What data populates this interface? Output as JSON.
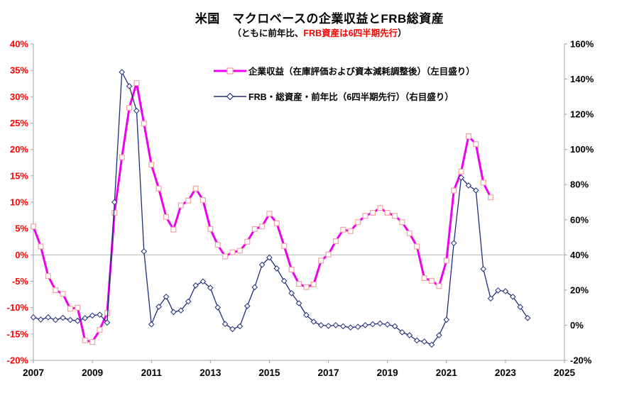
{
  "title": "米国　マクロベースの企業収益とFRB総資産",
  "subtitle": {
    "prefix": "（ともに前年比、",
    "highlight": "FRB資産は6四半期先行",
    "suffix": "）",
    "highlight_color": "#ff0000"
  },
  "legend": [
    {
      "label": "企業収益（在庫評価および資本減耗調整後）（左目盛り）"
    },
    {
      "label": "FRB・総資産・前年比（6四半期先行）（右目盛り）"
    }
  ],
  "colors": {
    "profit_line": "#ee00ee",
    "profit_marker_stroke": "#f2a3a3",
    "frb_line": "#1f2d7d",
    "left_axis_text": "#ff0000",
    "right_axis_text": "#000000",
    "axis_line": "#a6a6a6",
    "zero_gridline": "#c0c0c0",
    "background": "#ffffff"
  },
  "chart_data": {
    "type": "line",
    "title": "米国　マクロベースの企業収益とFRB総資産",
    "subtitle": "（ともに前年比、FRB資産は6四半期先行）",
    "x_axis": {
      "start": 2007,
      "end": 2025,
      "tick_step_years": 2,
      "labels": [
        "2007",
        "2009",
        "2011",
        "2013",
        "2015",
        "2017",
        "2019",
        "2021",
        "2023",
        "2025"
      ]
    },
    "left_axis": {
      "min": -20,
      "max": 40,
      "step": 5,
      "unit": "%",
      "labels": [
        "40%",
        "35%",
        "30%",
        "25%",
        "20%",
        "15%",
        "10%",
        "5%",
        "0%",
        "-5%",
        "-10%",
        "-15%",
        "-20%"
      ]
    },
    "right_axis": {
      "min": -20,
      "max": 160,
      "step": 20,
      "unit": "%",
      "labels": [
        "160%",
        "140%",
        "120%",
        "100%",
        "80%",
        "60%",
        "40%",
        "20%",
        "0%",
        "-20%"
      ]
    },
    "gridline_at_left_value": 0,
    "points_per_year": 4,
    "series": [
      {
        "name": "企業収益（在庫評価および資本減耗調整後）（左目盛り）",
        "axis": "left",
        "color": "#ee00ee",
        "marker": "square",
        "marker_fill": "#ffffff",
        "marker_stroke": "#f2a3a3",
        "line_width": 3,
        "start": "2007Q1",
        "values": [
          5.4,
          1.6,
          -4.0,
          -6.7,
          -7.4,
          -10.2,
          -10.0,
          -16.2,
          -16.5,
          -14.2,
          -11.0,
          8.0,
          18.5,
          27.9,
          32.6,
          24.9,
          17.1,
          12.6,
          7.2,
          4.8,
          9.4,
          10.3,
          12.6,
          10.4,
          4.9,
          1.9,
          -0.3,
          0.5,
          0.8,
          2.5,
          4.9,
          5.4,
          7.8,
          6.0,
          1.7,
          -2.8,
          -5.5,
          -6.1,
          -5.6,
          -1.1,
          0.1,
          2.6,
          4.8,
          4.5,
          6.2,
          7.4,
          8.0,
          8.9,
          8.0,
          7.4,
          6.2,
          4.1,
          1.6,
          -4.4,
          -4.9,
          -5.9,
          -1.1,
          12.2,
          15.8,
          22.5,
          21.0,
          13.7,
          10.9
        ]
      },
      {
        "name": "FRB・総資産・前年比（6四半期先行）（右目盛り）",
        "axis": "right",
        "color": "#1f2d7d",
        "marker": "diamond",
        "marker_fill": "#ffffff",
        "marker_stroke": "#1f2d7d",
        "line_width": 1.3,
        "start": "2007Q1",
        "values": [
          4.5,
          3.2,
          4.5,
          3.0,
          4.2,
          3.0,
          2.5,
          4.0,
          5.5,
          6.0,
          1.5,
          70.0,
          144.0,
          136.0,
          122.0,
          42.0,
          0.5,
          10.5,
          16.2,
          7.5,
          8.4,
          13.5,
          22.6,
          24.9,
          21.3,
          10.1,
          0.7,
          -2.2,
          -0.6,
          10.9,
          21.6,
          34.4,
          38.5,
          32.3,
          25.2,
          18.2,
          12.5,
          5.8,
          2.0,
          0.0,
          -0.4,
          0.0,
          -0.6,
          -1.3,
          -0.9,
          0.0,
          0.6,
          1.0,
          0.4,
          -0.6,
          -4.0,
          -5.7,
          -8.7,
          -9.3,
          -11.1,
          -5.7,
          3.1,
          46.7,
          84.0,
          79.5,
          76.7,
          32.0,
          15.2,
          19.8,
          19.3,
          16.2,
          10.4,
          4.1
        ]
      }
    ]
  }
}
